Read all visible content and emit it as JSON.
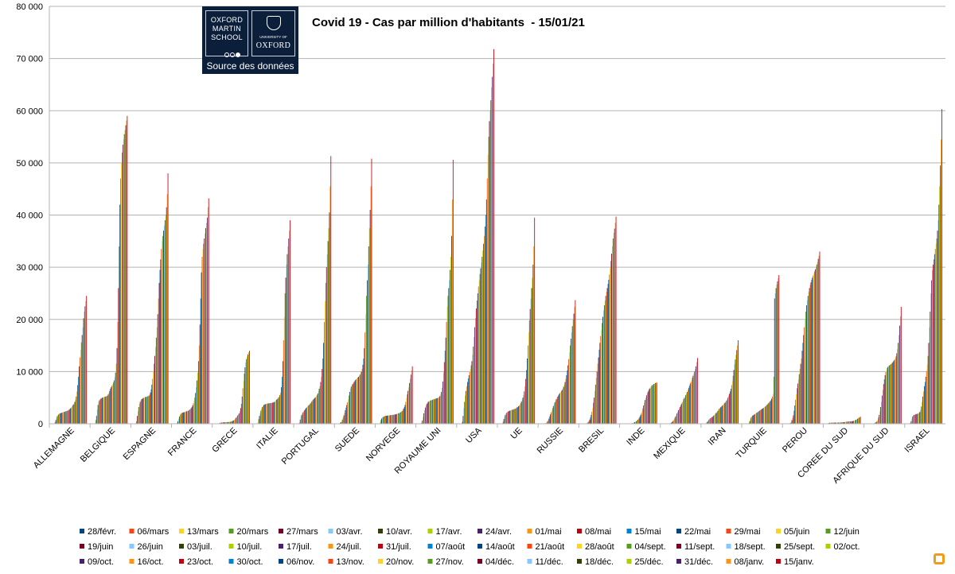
{
  "source_logo": {
    "left_text": "OXFORD MARTIN SCHOOL",
    "right_small": "UNIVERSITY OF",
    "right_large": "OXFORD",
    "caption": "Source des données"
  },
  "chart_data": {
    "type": "bar",
    "title": "Covid 19 - Cas par million d'habitants  - 15/01/21",
    "xlabel": "",
    "ylabel": "",
    "ylim": [
      0,
      80000
    ],
    "yticks": [
      0,
      10000,
      20000,
      30000,
      40000,
      50000,
      60000,
      70000,
      80000
    ],
    "ytick_labels": [
      "0",
      "10 000",
      "20 000",
      "30 000",
      "40 000",
      "50 000",
      "60 000",
      "70 000",
      "80 000"
    ],
    "grid": "horizontal",
    "legend_position": "bottom",
    "categories": [
      "ALLEMAGNE",
      "BELGIQUE",
      "ESPAGNE",
      "FRANCE",
      "GRECE",
      "ITALIE",
      "PORTUGAL",
      "SUEDE",
      "NORVEGE",
      "ROYAUME UNI",
      "USA",
      "UE",
      "RUSSIE",
      "BRESIL",
      "INDE",
      "MEXIQUE",
      "IRAN",
      "TURQUIE",
      "PEROU",
      "COREE DU SUD",
      "AFRIQUE DU SUD",
      "ISRAEL"
    ],
    "dates": [
      "28/févr.",
      "06/mars",
      "13/mars",
      "20/mars",
      "27/mars",
      "03/avr.",
      "10/avr.",
      "17/avr.",
      "24/avr.",
      "01/mai",
      "08/mai",
      "15/mai",
      "22/mai",
      "29/mai",
      "05/juin",
      "12/juin",
      "19/juin",
      "26/juin",
      "03/juil.",
      "10/juil.",
      "17/juil.",
      "24/juil.",
      "31/juil.",
      "07/août",
      "14/août",
      "21/août",
      "28/août",
      "04/sept.",
      "11/sept.",
      "18/sept.",
      "25/sept.",
      "02/oct.",
      "09/oct.",
      "16/oct.",
      "23/oct.",
      "30/oct.",
      "06/nov.",
      "13/nov.",
      "20/nov.",
      "27/nov.",
      "04/déc.",
      "11/déc.",
      "18/déc.",
      "25/déc.",
      "31/déc.",
      "08/janv.",
      "15/janv."
    ],
    "series_colors": [
      "#004586",
      "#ff420e",
      "#ffd320",
      "#579d1c",
      "#7e0021",
      "#83caff",
      "#314004",
      "#aecf00",
      "#4b1f6f",
      "#ff950e",
      "#c5000b",
      "#0084d1",
      "#004586",
      "#ff420e",
      "#ffd320",
      "#579d1c",
      "#7e0021",
      "#83caff",
      "#314004",
      "#aecf00",
      "#4b1f6f",
      "#ff950e",
      "#c5000b",
      "#0084d1",
      "#004586",
      "#ff420e",
      "#ffd320",
      "#579d1c",
      "#7e0021",
      "#83caff",
      "#314004",
      "#aecf00",
      "#4b1f6f",
      "#ff950e",
      "#c5000b",
      "#0084d1",
      "#004586",
      "#ff420e",
      "#ffd320",
      "#579d1c",
      "#7e0021",
      "#83caff",
      "#314004",
      "#aecf00",
      "#4b1f6f",
      "#ff950e",
      "#c5000b"
    ],
    "country_values": {
      "ALLEMAGNE": [
        0,
        0,
        50,
        300,
        700,
        1100,
        1450,
        1650,
        1800,
        1950,
        2000,
        2050,
        2100,
        2150,
        2200,
        2250,
        2300,
        2350,
        2400,
        2450,
        2500,
        2550,
        2650,
        2800,
        2950,
        3100,
        3300,
        3500,
        3700,
        3900,
        4200,
        4600,
        5200,
        6200,
        7400,
        9000,
        11000,
        12700,
        14200,
        15600,
        17000,
        18500,
        20200,
        21500,
        22500,
        23500,
        24500
      ],
      "BELGIQUE": [
        0,
        0,
        100,
        700,
        1500,
        2700,
        3600,
        4200,
        4500,
        4700,
        4800,
        4900,
        5000,
        5050,
        5100,
        5150,
        5200,
        5250,
        5300,
        5400,
        5600,
        5900,
        6300,
        6700,
        7000,
        7300,
        7600,
        7900,
        8300,
        8900,
        9800,
        11500,
        14500,
        19500,
        26000,
        34000,
        42000,
        47000,
        50000,
        52000,
        53500,
        54500,
        55500,
        56300,
        57200,
        58100,
        59000
      ],
      "ESPAGNE": [
        0,
        50,
        150,
        500,
        1500,
        2400,
        3200,
        3800,
        4200,
        4500,
        4700,
        4800,
        4900,
        5000,
        5050,
        5100,
        5150,
        5200,
        5250,
        5300,
        5400,
        5600,
        6000,
        6600,
        7500,
        8600,
        10000,
        11500,
        13000,
        14700,
        16500,
        18500,
        21000,
        24000,
        27000,
        29500,
        31500,
        33500,
        35000,
        36000,
        37000,
        38000,
        39000,
        40000,
        41500,
        44000,
        48000
      ],
      "FRANCE": [
        0,
        10,
        50,
        200,
        500,
        1000,
        1400,
        1700,
        1900,
        2050,
        2100,
        2150,
        2200,
        2250,
        2300,
        2350,
        2400,
        2450,
        2500,
        2600,
        2700,
        2850,
        3000,
        3200,
        3500,
        3900,
        4400,
        5000,
        5900,
        7000,
        8300,
        9800,
        12000,
        15000,
        19000,
        24000,
        29000,
        32000,
        33500,
        34500,
        35500,
        36500,
        37500,
        38500,
        39500,
        41500,
        43200
      ],
      "GRECE": [
        0,
        0,
        10,
        40,
        80,
        120,
        180,
        220,
        240,
        250,
        260,
        270,
        280,
        290,
        300,
        310,
        320,
        330,
        340,
        360,
        380,
        420,
        470,
        540,
        620,
        720,
        850,
        1000,
        1200,
        1400,
        1600,
        1800,
        2000,
        2400,
        3000,
        3800,
        5200,
        6800,
        8200,
        9600,
        10800,
        11800,
        12400,
        12900,
        13300,
        13700,
        14000
      ],
      "ITALIE": [
        0,
        50,
        300,
        900,
        1500,
        2000,
        2500,
        2900,
        3200,
        3400,
        3600,
        3700,
        3750,
        3800,
        3850,
        3880,
        3900,
        3920,
        3940,
        3960,
        3980,
        4000,
        4050,
        4100,
        4150,
        4250,
        4400,
        4550,
        4700,
        4850,
        5000,
        5200,
        5500,
        6000,
        7000,
        9000,
        12000,
        16000,
        20500,
        25000,
        28000,
        30500,
        32500,
        34000,
        35500,
        37000,
        39000
      ],
      "PORTUGAL": [
        0,
        0,
        20,
        200,
        800,
        1400,
        1700,
        2000,
        2200,
        2400,
        2600,
        2800,
        3000,
        3150,
        3300,
        3450,
        3600,
        3750,
        3900,
        4100,
        4300,
        4500,
        4650,
        4800,
        4950,
        5100,
        5300,
        5500,
        5800,
        6200,
        6700,
        7200,
        8000,
        9000,
        10500,
        12500,
        15500,
        19500,
        23500,
        27000,
        30000,
        32500,
        35000,
        37500,
        40500,
        45500,
        51300
      ],
      "SUEDE": [
        0,
        20,
        100,
        200,
        300,
        500,
        800,
        1200,
        1600,
        2100,
        2600,
        3100,
        3600,
        4100,
        4700,
        5400,
        6100,
        6700,
        7100,
        7400,
        7600,
        7800,
        8000,
        8200,
        8400,
        8550,
        8700,
        8850,
        9000,
        9200,
        9400,
        9700,
        10000,
        10500,
        11300,
        12500,
        14500,
        17500,
        21000,
        24500,
        27500,
        30500,
        34000,
        37500,
        41000,
        45500,
        50800
      ],
      "NORVEGE": [
        0,
        50,
        300,
        700,
        1000,
        1200,
        1300,
        1400,
        1450,
        1500,
        1520,
        1540,
        1560,
        1580,
        1600,
        1620,
        1640,
        1660,
        1680,
        1700,
        1720,
        1740,
        1770,
        1800,
        1850,
        1900,
        1950,
        2000,
        2050,
        2100,
        2200,
        2300,
        2450,
        2650,
        2900,
        3200,
        3600,
        4200,
        4900,
        5600,
        6300,
        7000,
        7800,
        8600,
        9400,
        10200,
        11000
      ],
      "ROYAUME UNI": [
        0,
        10,
        50,
        200,
        600,
        1300,
        2000,
        2600,
        3100,
        3500,
        3800,
        4000,
        4200,
        4300,
        4400,
        4450,
        4500,
        4550,
        4600,
        4650,
        4700,
        4750,
        4800,
        4850,
        4900,
        4950,
        5000,
        5100,
        5300,
        5600,
        6100,
        6900,
        8100,
        9800,
        11800,
        14000,
        16500,
        19500,
        22500,
        24500,
        26000,
        27500,
        29500,
        32000,
        36000,
        43000,
        50600
      ],
      "USA": [
        0,
        10,
        100,
        400,
        1500,
        3000,
        4200,
        5400,
        6300,
        7200,
        8000,
        8700,
        9300,
        9900,
        10500,
        11200,
        12000,
        13200,
        14800,
        16600,
        18500,
        20300,
        22100,
        23600,
        25000,
        26300,
        27500,
        28700,
        29800,
        30900,
        32000,
        33200,
        34500,
        36000,
        37800,
        40000,
        43000,
        47000,
        51500,
        55000,
        58000,
        60000,
        62000,
        64500,
        66500,
        69000,
        71800
      ],
      "UE": [
        0,
        20,
        100,
        400,
        900,
        1400,
        1700,
        1950,
        2100,
        2250,
        2350,
        2450,
        2500,
        2550,
        2600,
        2650,
        2700,
        2750,
        2800,
        2850,
        2900,
        3000,
        3100,
        3200,
        3350,
        3500,
        3700,
        3950,
        4250,
        4600,
        5000,
        5500,
        6200,
        7200,
        8600,
        10300,
        12500,
        15000,
        17500,
        19800,
        22000,
        24000,
        26000,
        28000,
        30500,
        34000,
        39500
      ],
      "RUSSIE": [
        0,
        0,
        0,
        10,
        30,
        60,
        120,
        240,
        450,
        700,
        1000,
        1400,
        1800,
        2200,
        2600,
        3000,
        3400,
        3750,
        4100,
        4400,
        4700,
        4950,
        5200,
        5450,
        5700,
        5900,
        6100,
        6300,
        6500,
        6800,
        7100,
        7500,
        8000,
        8600,
        9300,
        10200,
        11200,
        12400,
        13700,
        15000,
        16300,
        17500,
        18700,
        19900,
        21100,
        22400,
        23700
      ],
      "BRESIL": [
        0,
        0,
        0,
        10,
        30,
        60,
        100,
        200,
        350,
        550,
        800,
        1200,
        1700,
        2300,
        3000,
        4000,
        5000,
        6300,
        7500,
        8800,
        10000,
        11500,
        12700,
        14200,
        15500,
        16800,
        18000,
        19300,
        20500,
        21700,
        22700,
        23600,
        24500,
        25300,
        26000,
        26800,
        27600,
        28600,
        29800,
        31200,
        32600,
        34000,
        35500,
        36600,
        37400,
        38500,
        39700
      ],
      "INDE": [
        0,
        0,
        0,
        0,
        1,
        2,
        5,
        10,
        15,
        25,
        40,
        60,
        90,
        130,
        180,
        240,
        310,
        400,
        500,
        620,
        760,
        920,
        1130,
        1400,
        1700,
        2050,
        2450,
        2950,
        3500,
        4050,
        4550,
        5000,
        5450,
        5850,
        6150,
        6450,
        6700,
        6900,
        7100,
        7250,
        7400,
        7500,
        7600,
        7700,
        7800,
        7850,
        7900
      ],
      "MEXIQUE": [
        0,
        0,
        0,
        2,
        8,
        15,
        30,
        50,
        80,
        120,
        200,
        300,
        450,
        650,
        850,
        1100,
        1400,
        1700,
        2000,
        2300,
        2600,
        2900,
        3200,
        3500,
        3800,
        4100,
        4400,
        4700,
        4950,
        5200,
        5500,
        5800,
        6100,
        6500,
        6900,
        7300,
        7700,
        8000,
        8400,
        8800,
        9200,
        9600,
        10000,
        10500,
        11000,
        11800,
        12600
      ],
      "IRAN": [
        0,
        30,
        100,
        250,
        400,
        600,
        800,
        950,
        1050,
        1150,
        1250,
        1350,
        1500,
        1650,
        1800,
        1950,
        2100,
        2250,
        2450,
        2650,
        2850,
        3000,
        3150,
        3300,
        3450,
        3600,
        3750,
        3900,
        4050,
        4250,
        4450,
        4700,
        5000,
        5350,
        5750,
        6200,
        6700,
        7400,
        8200,
        9200,
        10300,
        11400,
        12300,
        13200,
        14100,
        15000,
        16000
      ],
      "TURQUIE": [
        0,
        0,
        0,
        10,
        50,
        200,
        500,
        900,
        1200,
        1400,
        1550,
        1650,
        1750,
        1850,
        1950,
        2050,
        2150,
        2250,
        2350,
        2450,
        2550,
        2650,
        2750,
        2850,
        2950,
        3050,
        3150,
        3250,
        3400,
        3550,
        3700,
        3850,
        4000,
        4150,
        4300,
        4500,
        4800,
        5200,
        5700,
        9000,
        24000,
        25000,
        26000,
        26700,
        27300,
        27900,
        28500
      ],
      "PEROU": [
        0,
        0,
        0,
        10,
        20,
        50,
        150,
        350,
        700,
        1100,
        1600,
        2500,
        3500,
        4600,
        5700,
        6800,
        7700,
        8500,
        9500,
        10500,
        11500,
        12500,
        14000,
        15500,
        17000,
        18500,
        20000,
        21500,
        22700,
        23700,
        24500,
        25300,
        26000,
        26600,
        27100,
        27600,
        28000,
        28400,
        28800,
        29200,
        29600,
        30000,
        30500,
        31000,
        31600,
        32200,
        33000
      ],
      "COREE DU SUD": [
        0,
        50,
        120,
        160,
        180,
        195,
        200,
        205,
        208,
        210,
        212,
        215,
        218,
        222,
        226,
        230,
        235,
        240,
        245,
        252,
        260,
        268,
        276,
        284,
        300,
        330,
        360,
        380,
        400,
        415,
        430,
        440,
        450,
        460,
        470,
        490,
        520,
        560,
        620,
        680,
        760,
        850,
        950,
        1050,
        1150,
        1250,
        1350
      ],
      "AFRIQUE DU SUD": [
        0,
        0,
        0,
        5,
        15,
        25,
        35,
        45,
        60,
        90,
        140,
        220,
        340,
        520,
        800,
        1200,
        1700,
        2400,
        3200,
        4200,
        5400,
        6500,
        7600,
        8500,
        9300,
        9900,
        10300,
        10700,
        10900,
        11100,
        11200,
        11300,
        11400,
        11600,
        11700,
        11900,
        12100,
        12300,
        12600,
        12900,
        13500,
        14300,
        15500,
        17000,
        18800,
        20600,
        22400
      ],
      "ISRAEL": [
        0,
        10,
        40,
        150,
        500,
        1000,
        1400,
        1600,
        1700,
        1750,
        1800,
        1850,
        1900,
        1950,
        2000,
        2100,
        2300,
        2700,
        3300,
        4200,
        5200,
        6200,
        7200,
        8000,
        9000,
        10100,
        11400,
        13000,
        15500,
        18500,
        21500,
        25000,
        27500,
        29500,
        30500,
        31500,
        32500,
        33500,
        34500,
        35500,
        37000,
        39000,
        42000,
        45500,
        49500,
        54500,
        60300
      ]
    }
  }
}
